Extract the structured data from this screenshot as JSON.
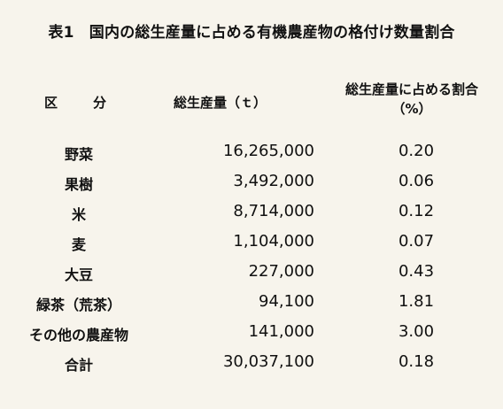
{
  "title": "表1　国内の総生産量に占める有機農産物の格付け数量割合",
  "headers": {
    "category": "区分",
    "production": "総生産量（ｔ）",
    "ratio_line1": "総生産量に占める割合",
    "ratio_line2": "（%）"
  },
  "rows": [
    {
      "name": "野菜",
      "production": "16,265,000",
      "ratio": "0.20"
    },
    {
      "name": "果樹",
      "production": "3,492,000",
      "ratio": "0.06"
    },
    {
      "name": "米",
      "production": "8,714,000",
      "ratio": "0.12"
    },
    {
      "name": "麦",
      "production": "1,104,000",
      "ratio": "0.07"
    },
    {
      "name": "大豆",
      "production": "227,000",
      "ratio": "0.43"
    },
    {
      "name": "緑茶（荒茶）",
      "production": "94,100",
      "ratio": "1.81"
    },
    {
      "name": "その他の農産物",
      "production": "141,000",
      "ratio": "3.00"
    },
    {
      "name": "合計",
      "production": "30,037,100",
      "ratio": "0.18"
    }
  ]
}
